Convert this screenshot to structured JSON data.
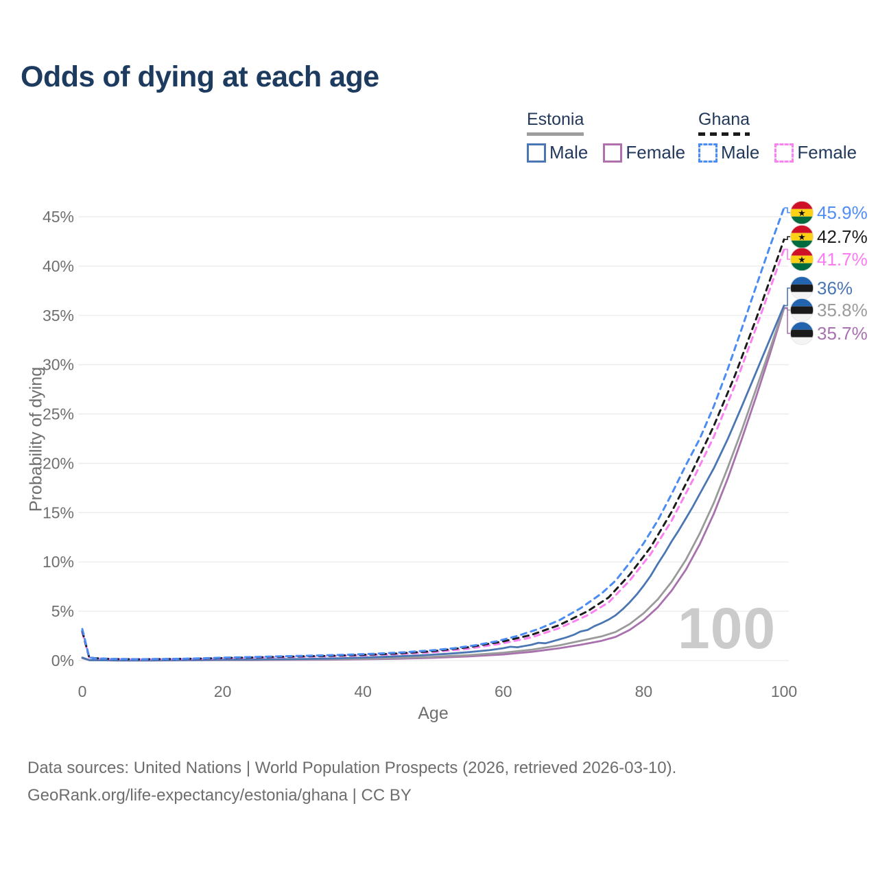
{
  "title": "Odds of dying at each age",
  "watermark": "100",
  "legend": {
    "groups": [
      {
        "country": "Estonia",
        "line_style": "solid",
        "underline_color": "#9e9e9e",
        "items": [
          {
            "label": "Male",
            "color": "#4a77b4"
          },
          {
            "label": "Female",
            "color": "#b06fad"
          }
        ]
      },
      {
        "country": "Ghana",
        "line_style": "dashed",
        "underline_color": "#1b1b1b",
        "items": [
          {
            "label": "Male",
            "color": "#4a8cf4"
          },
          {
            "label": "Female",
            "color": "#fb80f2"
          }
        ]
      }
    ]
  },
  "chart_data": {
    "type": "line",
    "title": "Odds of dying at each age",
    "xlabel": "Age",
    "ylabel": "Probability of dying",
    "xlim": [
      0,
      100
    ],
    "ylim": [
      0,
      46
    ],
    "grid": true,
    "legend_position": "top-right",
    "x_ticks": [
      0,
      20,
      40,
      60,
      80,
      100
    ],
    "y_ticks": [
      {
        "v": 0,
        "label": "0%"
      },
      {
        "v": 5,
        "label": "5%"
      },
      {
        "v": 10,
        "label": "10%"
      },
      {
        "v": 15,
        "label": "15%"
      },
      {
        "v": 20,
        "label": "20%"
      },
      {
        "v": 25,
        "label": "25%"
      },
      {
        "v": 30,
        "label": "30%"
      },
      {
        "v": 35,
        "label": "35%"
      },
      {
        "v": 40,
        "label": "40%"
      },
      {
        "v": 45,
        "label": "45%"
      }
    ],
    "series": [
      {
        "name": "Estonia Female",
        "country": "Estonia",
        "sex": "Female",
        "color": "#a871ae",
        "dash": "none",
        "width": 2.8,
        "points": [
          [
            0,
            0.25
          ],
          [
            1,
            0.04
          ],
          [
            5,
            0.015
          ],
          [
            10,
            0.015
          ],
          [
            15,
            0.03
          ],
          [
            20,
            0.04
          ],
          [
            25,
            0.05
          ],
          [
            30,
            0.07
          ],
          [
            35,
            0.09
          ],
          [
            40,
            0.13
          ],
          [
            45,
            0.19
          ],
          [
            50,
            0.28
          ],
          [
            55,
            0.42
          ],
          [
            60,
            0.62
          ],
          [
            64,
            0.88
          ],
          [
            68,
            1.25
          ],
          [
            71,
            1.6
          ],
          [
            74,
            2.0
          ],
          [
            76,
            2.4
          ],
          [
            78,
            3.1
          ],
          [
            80,
            4.1
          ],
          [
            82,
            5.4
          ],
          [
            84,
            7.1
          ],
          [
            86,
            9.2
          ],
          [
            88,
            11.8
          ],
          [
            90,
            14.9
          ],
          [
            92,
            18.5
          ],
          [
            94,
            22.5
          ],
          [
            96,
            26.7
          ],
          [
            98,
            31.1
          ],
          [
            100,
            35.7
          ]
        ]
      },
      {
        "name": "Estonia Both",
        "country": "Estonia",
        "sex": "Both",
        "color": "#9a9a9a",
        "dash": "none",
        "width": 2.8,
        "points": [
          [
            0,
            0.27
          ],
          [
            1,
            0.04
          ],
          [
            5,
            0.02
          ],
          [
            10,
            0.02
          ],
          [
            15,
            0.04
          ],
          [
            20,
            0.07
          ],
          [
            25,
            0.09
          ],
          [
            30,
            0.11
          ],
          [
            35,
            0.14
          ],
          [
            40,
            0.19
          ],
          [
            45,
            0.27
          ],
          [
            50,
            0.38
          ],
          [
            55,
            0.55
          ],
          [
            60,
            0.8
          ],
          [
            64,
            1.1
          ],
          [
            68,
            1.55
          ],
          [
            71,
            2.0
          ],
          [
            74,
            2.45
          ],
          [
            76,
            2.9
          ],
          [
            78,
            3.7
          ],
          [
            80,
            4.8
          ],
          [
            82,
            6.2
          ],
          [
            84,
            8.0
          ],
          [
            86,
            10.2
          ],
          [
            88,
            12.9
          ],
          [
            90,
            16.0
          ],
          [
            92,
            19.6
          ],
          [
            94,
            23.4
          ],
          [
            96,
            27.5
          ],
          [
            98,
            31.6
          ],
          [
            100,
            35.8
          ]
        ]
      },
      {
        "name": "Estonia Male",
        "country": "Estonia",
        "sex": "Male",
        "color": "#4a77b4",
        "dash": "none",
        "width": 2.8,
        "points": [
          [
            0,
            0.3
          ],
          [
            1,
            0.05
          ],
          [
            5,
            0.02
          ],
          [
            10,
            0.02
          ],
          [
            14,
            0.04
          ],
          [
            17,
            0.07
          ],
          [
            20,
            0.1
          ],
          [
            24,
            0.12
          ],
          [
            28,
            0.14
          ],
          [
            32,
            0.17
          ],
          [
            36,
            0.22
          ],
          [
            40,
            0.3
          ],
          [
            44,
            0.4
          ],
          [
            48,
            0.52
          ],
          [
            52,
            0.68
          ],
          [
            55,
            0.85
          ],
          [
            58,
            1.05
          ],
          [
            60,
            1.25
          ],
          [
            61,
            1.4
          ],
          [
            62,
            1.35
          ],
          [
            64,
            1.6
          ],
          [
            65,
            1.8
          ],
          [
            66,
            1.75
          ],
          [
            68,
            2.15
          ],
          [
            69,
            2.35
          ],
          [
            70,
            2.6
          ],
          [
            71,
            2.95
          ],
          [
            72,
            3.1
          ],
          [
            73,
            3.5
          ],
          [
            74,
            3.8
          ],
          [
            75,
            4.15
          ],
          [
            76,
            4.6
          ],
          [
            77,
            5.2
          ],
          [
            78,
            5.9
          ],
          [
            79,
            6.7
          ],
          [
            80,
            7.6
          ],
          [
            81,
            8.6
          ],
          [
            82,
            9.8
          ],
          [
            83,
            10.9
          ],
          [
            84,
            12.1
          ],
          [
            85,
            13.2
          ],
          [
            86,
            14.4
          ],
          [
            87,
            15.6
          ],
          [
            88,
            16.9
          ],
          [
            90,
            19.5
          ],
          [
            92,
            22.5
          ],
          [
            94,
            25.8
          ],
          [
            96,
            29.2
          ],
          [
            98,
            32.6
          ],
          [
            100,
            36.0
          ]
        ]
      },
      {
        "name": "Ghana Female",
        "country": "Ghana",
        "sex": "Female",
        "color": "#fb80f2",
        "dash": "8 7",
        "width": 3,
        "points": [
          [
            0,
            2.85
          ],
          [
            1,
            0.26
          ],
          [
            4,
            0.15
          ],
          [
            8,
            0.12
          ],
          [
            12,
            0.14
          ],
          [
            16,
            0.17
          ],
          [
            20,
            0.23
          ],
          [
            25,
            0.29
          ],
          [
            30,
            0.36
          ],
          [
            35,
            0.43
          ],
          [
            40,
            0.52
          ],
          [
            45,
            0.65
          ],
          [
            50,
            0.85
          ],
          [
            55,
            1.2
          ],
          [
            60,
            1.75
          ],
          [
            64,
            2.35
          ],
          [
            68,
            3.3
          ],
          [
            72,
            4.6
          ],
          [
            75,
            5.9
          ],
          [
            78,
            8.1
          ],
          [
            81,
            10.8
          ],
          [
            84,
            14.2
          ],
          [
            87,
            18.3
          ],
          [
            90,
            22.7
          ],
          [
            93,
            27.9
          ],
          [
            96,
            33.7
          ],
          [
            98,
            37.7
          ],
          [
            100,
            41.7
          ]
        ]
      },
      {
        "name": "Ghana Both",
        "country": "Ghana",
        "sex": "Both",
        "color": "#1c1c1c",
        "dash": "8 7",
        "width": 3,
        "points": [
          [
            0,
            3.0
          ],
          [
            1,
            0.28
          ],
          [
            4,
            0.16
          ],
          [
            8,
            0.13
          ],
          [
            12,
            0.15
          ],
          [
            16,
            0.19
          ],
          [
            20,
            0.26
          ],
          [
            25,
            0.33
          ],
          [
            30,
            0.41
          ],
          [
            35,
            0.48
          ],
          [
            40,
            0.58
          ],
          [
            45,
            0.72
          ],
          [
            50,
            0.95
          ],
          [
            55,
            1.35
          ],
          [
            60,
            1.95
          ],
          [
            64,
            2.6
          ],
          [
            68,
            3.6
          ],
          [
            72,
            5.0
          ],
          [
            75,
            6.4
          ],
          [
            78,
            8.7
          ],
          [
            81,
            11.5
          ],
          [
            84,
            15.1
          ],
          [
            87,
            19.3
          ],
          [
            90,
            23.8
          ],
          [
            93,
            28.9
          ],
          [
            96,
            34.6
          ],
          [
            98,
            38.6
          ],
          [
            100,
            42.7
          ]
        ]
      },
      {
        "name": "Ghana Male",
        "country": "Ghana",
        "sex": "Male",
        "color": "#4a8cf4",
        "dash": "8 7",
        "width": 3,
        "points": [
          [
            0,
            3.2
          ],
          [
            1,
            0.3
          ],
          [
            2,
            0.22
          ],
          [
            4,
            0.17
          ],
          [
            6,
            0.15
          ],
          [
            8,
            0.14
          ],
          [
            10,
            0.15
          ],
          [
            12,
            0.16
          ],
          [
            14,
            0.18
          ],
          [
            16,
            0.21
          ],
          [
            18,
            0.25
          ],
          [
            20,
            0.29
          ],
          [
            23,
            0.34
          ],
          [
            26,
            0.39
          ],
          [
            30,
            0.46
          ],
          [
            34,
            0.52
          ],
          [
            38,
            0.6
          ],
          [
            42,
            0.7
          ],
          [
            46,
            0.85
          ],
          [
            50,
            1.05
          ],
          [
            53,
            1.25
          ],
          [
            56,
            1.55
          ],
          [
            59,
            1.95
          ],
          [
            62,
            2.5
          ],
          [
            65,
            3.2
          ],
          [
            68,
            4.1
          ],
          [
            71,
            5.3
          ],
          [
            74,
            6.8
          ],
          [
            76,
            8.1
          ],
          [
            78,
            9.9
          ],
          [
            80,
            11.9
          ],
          [
            82,
            14.2
          ],
          [
            84,
            16.9
          ],
          [
            86,
            19.8
          ],
          [
            88,
            22.5
          ],
          [
            90,
            25.8
          ],
          [
            92,
            29.6
          ],
          [
            94,
            33.7
          ],
          [
            96,
            37.9
          ],
          [
            98,
            42.0
          ],
          [
            100,
            45.9
          ]
        ]
      }
    ],
    "end_labels": [
      {
        "series": "Ghana Male",
        "label": "45.9%",
        "color": "#4f8df5",
        "flag": "ghana"
      },
      {
        "series": "Ghana Both",
        "label": "42.7%",
        "color": "#1c1c1c",
        "flag": "ghana"
      },
      {
        "series": "Ghana Female",
        "label": "41.7%",
        "color": "#fb7cf0",
        "flag": "ghana"
      },
      {
        "series": "Estonia Male",
        "label": "36%",
        "color": "#4a76b5",
        "flag": "estonia"
      },
      {
        "series": "Estonia Both",
        "label": "35.8%",
        "color": "#9b9b9b",
        "flag": "estonia"
      },
      {
        "series": "Estonia Female",
        "label": "35.7%",
        "color": "#a871b0",
        "flag": "estonia"
      }
    ]
  },
  "footer": {
    "line1": "Data sources: United Nations | World Population Prospects (2026, retrieved 2026-03-10).",
    "line2": "GeoRank.org/life-expectancy/estonia/ghana | CC BY"
  }
}
